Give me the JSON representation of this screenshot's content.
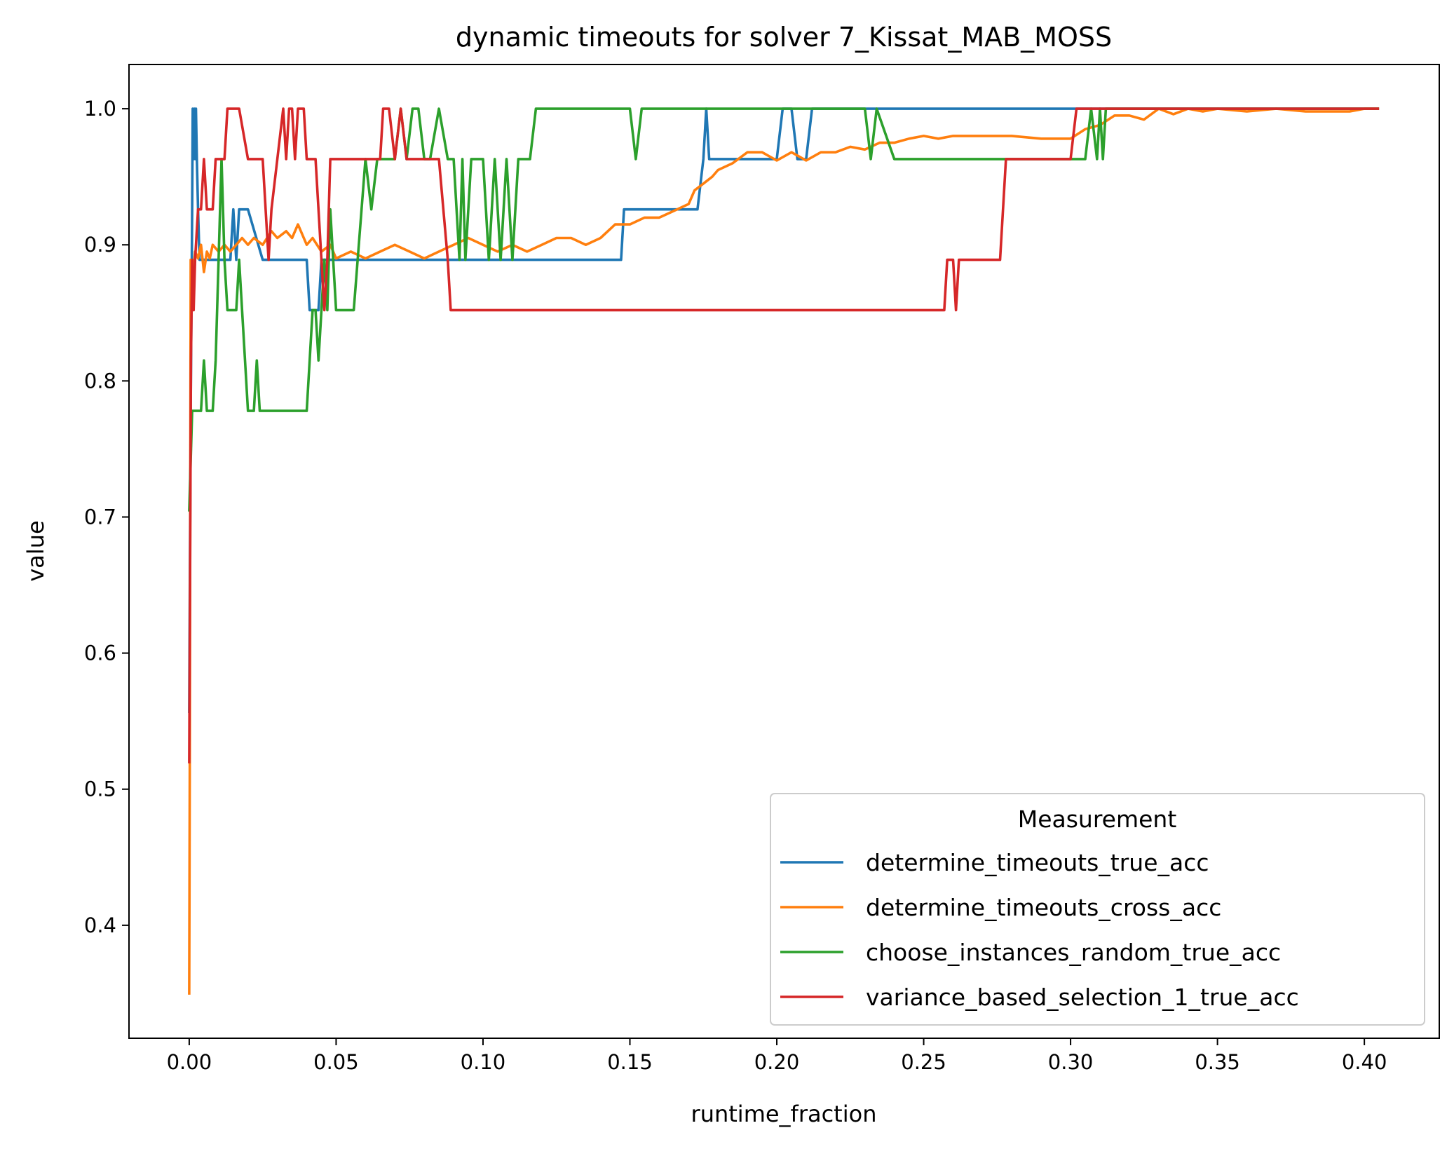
{
  "chart_data": {
    "type": "line",
    "title": "dynamic timeouts for solver 7_Kissat_MAB_MOSS",
    "xlabel": "runtime_fraction",
    "ylabel": "value",
    "xlim": [
      -0.0205,
      0.4255
    ],
    "ylim": [
      0.317,
      1.0325
    ],
    "xticks": [
      0.0,
      0.05,
      0.1,
      0.15,
      0.2,
      0.25,
      0.3,
      0.35,
      0.4
    ],
    "xtick_labels": [
      "0.00",
      "0.05",
      "0.10",
      "0.15",
      "0.20",
      "0.25",
      "0.30",
      "0.35",
      "0.40"
    ],
    "yticks": [
      0.4,
      0.5,
      0.6,
      0.7,
      0.8,
      0.9,
      1.0
    ],
    "ytick_labels": [
      "0.4",
      "0.5",
      "0.6",
      "0.7",
      "0.8",
      "0.9",
      "1.0"
    ],
    "grid": false,
    "legend": {
      "title": "Measurement",
      "placement": "lower-right"
    },
    "series": [
      {
        "name": "determine_timeouts_true_acc",
        "color": "#1f77b4",
        "x": [
          0.0,
          0.0005,
          0.001,
          0.0012,
          0.0015,
          0.0018,
          0.002,
          0.0023,
          0.0026,
          0.003,
          0.0035,
          0.004,
          0.005,
          0.01,
          0.014,
          0.015,
          0.016,
          0.017,
          0.018,
          0.02,
          0.025,
          0.03,
          0.04,
          0.041,
          0.043,
          0.044,
          0.045,
          0.05,
          0.06,
          0.08,
          0.1,
          0.12,
          0.147,
          0.148,
          0.17,
          0.173,
          0.175,
          0.176,
          0.177,
          0.178,
          0.18,
          0.19,
          0.2,
          0.202,
          0.203,
          0.205,
          0.207,
          0.209,
          0.21,
          0.212,
          0.213,
          0.22,
          0.25,
          0.3,
          0.35,
          0.405
        ],
        "y": [
          0.556,
          0.778,
          0.926,
          1.0,
          0.963,
          1.0,
          0.963,
          1.0,
          0.963,
          0.926,
          0.889,
          0.889,
          0.889,
          0.889,
          0.889,
          0.926,
          0.889,
          0.926,
          0.926,
          0.926,
          0.889,
          0.889,
          0.889,
          0.852,
          0.852,
          0.852,
          0.889,
          0.889,
          0.889,
          0.889,
          0.889,
          0.889,
          0.889,
          0.926,
          0.926,
          0.926,
          0.963,
          1.0,
          0.963,
          0.963,
          0.963,
          0.963,
          0.963,
          1.0,
          1.0,
          1.0,
          0.963,
          0.963,
          0.963,
          1.0,
          1.0,
          1.0,
          1.0,
          1.0,
          1.0,
          1.0
        ]
      },
      {
        "name": "determine_timeouts_cross_acc",
        "color": "#ff7f0e",
        "x": [
          0.0,
          0.0002,
          0.0005,
          0.001,
          0.002,
          0.003,
          0.004,
          0.005,
          0.006,
          0.007,
          0.008,
          0.01,
          0.012,
          0.014,
          0.016,
          0.018,
          0.02,
          0.022,
          0.025,
          0.028,
          0.03,
          0.033,
          0.035,
          0.037,
          0.04,
          0.042,
          0.045,
          0.048,
          0.05,
          0.055,
          0.06,
          0.065,
          0.07,
          0.075,
          0.08,
          0.085,
          0.09,
          0.095,
          0.1,
          0.105,
          0.11,
          0.115,
          0.12,
          0.125,
          0.13,
          0.135,
          0.14,
          0.145,
          0.15,
          0.155,
          0.16,
          0.165,
          0.17,
          0.172,
          0.175,
          0.178,
          0.18,
          0.185,
          0.19,
          0.195,
          0.2,
          0.205,
          0.21,
          0.215,
          0.22,
          0.225,
          0.23,
          0.235,
          0.24,
          0.245,
          0.25,
          0.255,
          0.26,
          0.265,
          0.27,
          0.28,
          0.29,
          0.3,
          0.305,
          0.31,
          0.315,
          0.32,
          0.325,
          0.33,
          0.335,
          0.34,
          0.345,
          0.35,
          0.36,
          0.37,
          0.38,
          0.39,
          0.395,
          0.4,
          0.405
        ],
        "y": [
          0.349,
          0.517,
          0.889,
          0.87,
          0.895,
          0.89,
          0.9,
          0.88,
          0.895,
          0.89,
          0.9,
          0.895,
          0.9,
          0.895,
          0.9,
          0.905,
          0.9,
          0.905,
          0.9,
          0.91,
          0.905,
          0.91,
          0.905,
          0.915,
          0.9,
          0.905,
          0.895,
          0.9,
          0.89,
          0.895,
          0.89,
          0.895,
          0.9,
          0.895,
          0.89,
          0.895,
          0.9,
          0.905,
          0.9,
          0.895,
          0.9,
          0.895,
          0.9,
          0.905,
          0.905,
          0.9,
          0.905,
          0.915,
          0.915,
          0.92,
          0.92,
          0.925,
          0.93,
          0.94,
          0.945,
          0.95,
          0.955,
          0.96,
          0.968,
          0.968,
          0.962,
          0.968,
          0.962,
          0.968,
          0.968,
          0.972,
          0.97,
          0.975,
          0.975,
          0.978,
          0.98,
          0.978,
          0.98,
          0.98,
          0.98,
          0.98,
          0.978,
          0.978,
          0.985,
          0.988,
          0.995,
          0.995,
          0.992,
          1.0,
          0.996,
          1.0,
          0.998,
          1.0,
          0.998,
          1.0,
          0.998,
          0.998,
          0.998,
          1.0,
          1.0
        ]
      },
      {
        "name": "choose_instances_random_true_acc",
        "color": "#2ca02c",
        "x": [
          0.0,
          0.001,
          0.002,
          0.003,
          0.004,
          0.005,
          0.006,
          0.007,
          0.008,
          0.009,
          0.01,
          0.011,
          0.012,
          0.013,
          0.014,
          0.015,
          0.016,
          0.017,
          0.018,
          0.019,
          0.02,
          0.021,
          0.022,
          0.023,
          0.024,
          0.03,
          0.04,
          0.041,
          0.042,
          0.043,
          0.044,
          0.045,
          0.046,
          0.047,
          0.048,
          0.05,
          0.052,
          0.054,
          0.056,
          0.06,
          0.062,
          0.064,
          0.065,
          0.066,
          0.07,
          0.072,
          0.074,
          0.076,
          0.078,
          0.08,
          0.082,
          0.085,
          0.088,
          0.09,
          0.092,
          0.093,
          0.094,
          0.096,
          0.1,
          0.102,
          0.104,
          0.106,
          0.108,
          0.11,
          0.112,
          0.114,
          0.116,
          0.118,
          0.12,
          0.15,
          0.152,
          0.154,
          0.18,
          0.2,
          0.23,
          0.232,
          0.234,
          0.24,
          0.26,
          0.28,
          0.3,
          0.305,
          0.307,
          0.309,
          0.31,
          0.311,
          0.312,
          0.315,
          0.35,
          0.405
        ],
        "y": [
          0.704,
          0.778,
          0.778,
          0.778,
          0.778,
          0.815,
          0.778,
          0.778,
          0.778,
          0.815,
          0.889,
          0.963,
          0.889,
          0.852,
          0.852,
          0.852,
          0.852,
          0.889,
          0.852,
          0.815,
          0.778,
          0.778,
          0.778,
          0.815,
          0.778,
          0.778,
          0.778,
          0.815,
          0.852,
          0.852,
          0.815,
          0.852,
          0.889,
          0.852,
          0.926,
          0.852,
          0.852,
          0.852,
          0.852,
          0.963,
          0.926,
          0.963,
          0.963,
          0.963,
          0.963,
          1.0,
          0.963,
          1.0,
          1.0,
          0.963,
          0.963,
          1.0,
          0.963,
          0.963,
          0.889,
          0.963,
          0.889,
          0.963,
          0.963,
          0.889,
          0.963,
          0.889,
          0.963,
          0.889,
          0.963,
          0.963,
          0.963,
          1.0,
          1.0,
          1.0,
          0.963,
          1.0,
          1.0,
          1.0,
          1.0,
          0.963,
          1.0,
          0.963,
          0.963,
          0.963,
          0.963,
          0.963,
          1.0,
          0.963,
          1.0,
          0.963,
          1.0,
          1.0,
          1.0,
          1.0
        ]
      },
      {
        "name": "variance_based_selection_1_true_acc",
        "color": "#d62728",
        "x": [
          0.0,
          0.0003,
          0.0006,
          0.001,
          0.0015,
          0.002,
          0.003,
          0.004,
          0.005,
          0.006,
          0.007,
          0.008,
          0.009,
          0.01,
          0.012,
          0.013,
          0.014,
          0.015,
          0.017,
          0.02,
          0.022,
          0.025,
          0.027,
          0.028,
          0.03,
          0.032,
          0.033,
          0.034,
          0.035,
          0.036,
          0.037,
          0.038,
          0.039,
          0.04,
          0.041,
          0.042,
          0.043,
          0.045,
          0.046,
          0.047,
          0.048,
          0.05,
          0.06,
          0.065,
          0.066,
          0.068,
          0.07,
          0.072,
          0.074,
          0.075,
          0.076,
          0.078,
          0.08,
          0.085,
          0.088,
          0.089,
          0.09,
          0.1,
          0.15,
          0.2,
          0.25,
          0.257,
          0.258,
          0.259,
          0.26,
          0.261,
          0.262,
          0.263,
          0.265,
          0.27,
          0.276,
          0.278,
          0.28,
          0.3,
          0.302,
          0.304,
          0.35,
          0.405
        ],
        "y": [
          0.519,
          0.667,
          0.815,
          0.889,
          0.852,
          0.889,
          0.926,
          0.926,
          0.963,
          0.926,
          0.926,
          0.926,
          0.963,
          0.963,
          0.963,
          1.0,
          1.0,
          1.0,
          1.0,
          0.963,
          0.963,
          0.963,
          0.889,
          0.926,
          0.963,
          1.0,
          0.963,
          1.0,
          1.0,
          0.963,
          1.0,
          1.0,
          1.0,
          0.963,
          0.963,
          0.963,
          0.963,
          0.889,
          0.852,
          0.889,
          0.963,
          0.963,
          0.963,
          0.963,
          1.0,
          1.0,
          0.963,
          1.0,
          0.963,
          0.963,
          0.963,
          0.963,
          0.963,
          0.963,
          0.889,
          0.852,
          0.852,
          0.852,
          0.852,
          0.852,
          0.852,
          0.852,
          0.889,
          0.889,
          0.889,
          0.852,
          0.889,
          0.889,
          0.889,
          0.889,
          0.889,
          0.963,
          0.963,
          0.963,
          1.0,
          1.0,
          1.0,
          1.0
        ]
      }
    ]
  }
}
